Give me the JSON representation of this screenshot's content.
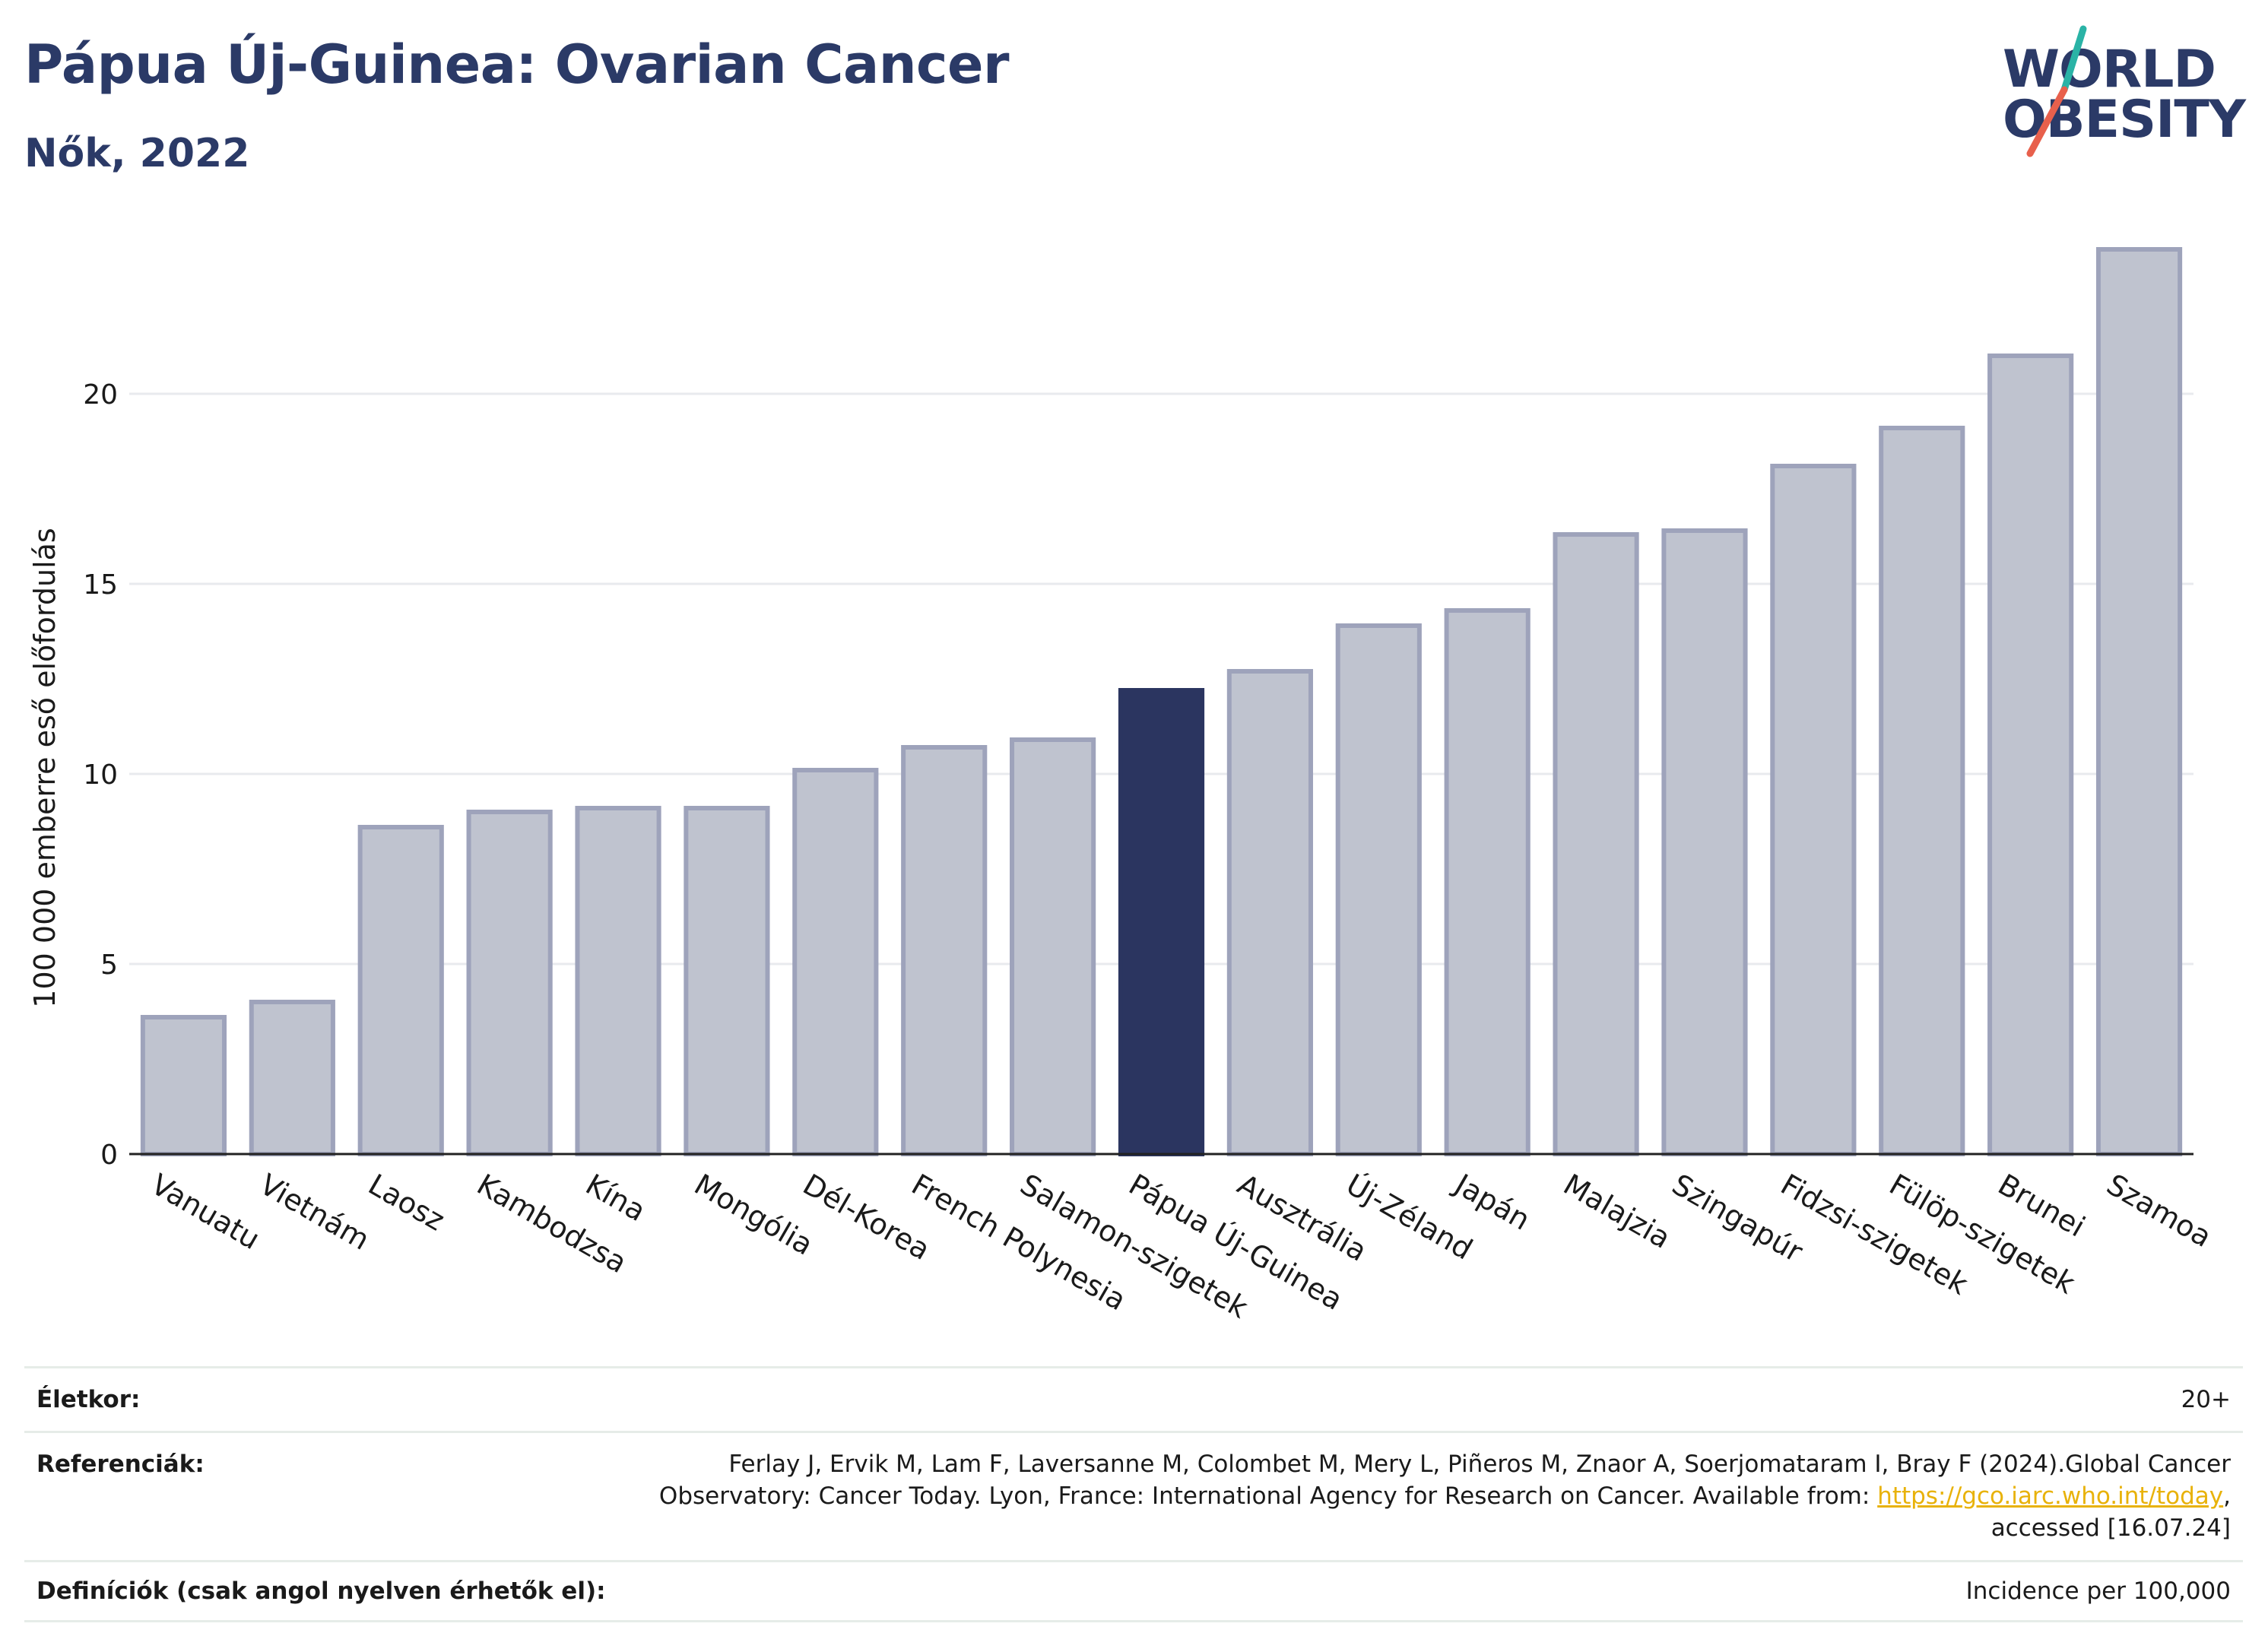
{
  "header": {
    "title": "Pápua Új-Guinea: Ovarian Cancer",
    "subtitle": "Nők, 2022"
  },
  "logo": {
    "line1": "WORLD",
    "line2": "OBESITY",
    "colors": {
      "text": "#2b3a67",
      "slash_top": "#2ab3a6",
      "slash_bottom": "#e8604c"
    }
  },
  "chart_data": {
    "type": "bar",
    "title": "",
    "xlabel": "",
    "ylabel": "100 000 emberre eső előfordulás",
    "ylim": [
      0,
      24
    ],
    "yticks": [
      0,
      5,
      10,
      15,
      20
    ],
    "grid": true,
    "legend": "none",
    "categories": [
      "Vanuatu",
      "Vietnám",
      "Laosz",
      "Kambodzsa",
      "Kína",
      "Mongólia",
      "Dél-Korea",
      "French Polynesia",
      "Salamon-szigetek",
      "Pápua Új-Guinea",
      "Ausztrália",
      "Új-Zéland",
      "Japán",
      "Malajzia",
      "Szingapúr",
      "Fidzsi-szigetek",
      "Fülöp-szigetek",
      "Brunei",
      "Szamoa"
    ],
    "values": [
      3.6,
      4.0,
      8.6,
      9.0,
      9.1,
      9.1,
      10.1,
      10.7,
      10.9,
      12.2,
      12.7,
      13.9,
      14.3,
      16.3,
      16.4,
      18.1,
      19.1,
      21.0,
      23.8
    ],
    "highlight": "Pápua Új-Guinea",
    "colors": {
      "bar": "#bfc3cf",
      "bar_edge": "#9ea3bb",
      "highlight": "#2b3560",
      "grid": "#e8eaee",
      "axis": "#222222"
    }
  },
  "footer": {
    "age_label": "Életkor:",
    "age_value": "20+",
    "ref_label": "Referenciák:",
    "ref_text_1": "Ferlay J, Ervik M, Lam F, Laversanne M, Colombet M, Mery L, Piñeros M, Znaor A, Soerjomataram I, Bray F (2024).Global Cancer Observatory: Cancer Today. Lyon, France: International Agency for Research on Cancer. Available from: ",
    "ref_link": "https://gco.iarc.who.int/today",
    "ref_text_2": ", accessed [16.07.24]",
    "def_label": "Definíciók (csak angol nyelven érhetők el):",
    "def_value": "Incidence per 100,000"
  }
}
